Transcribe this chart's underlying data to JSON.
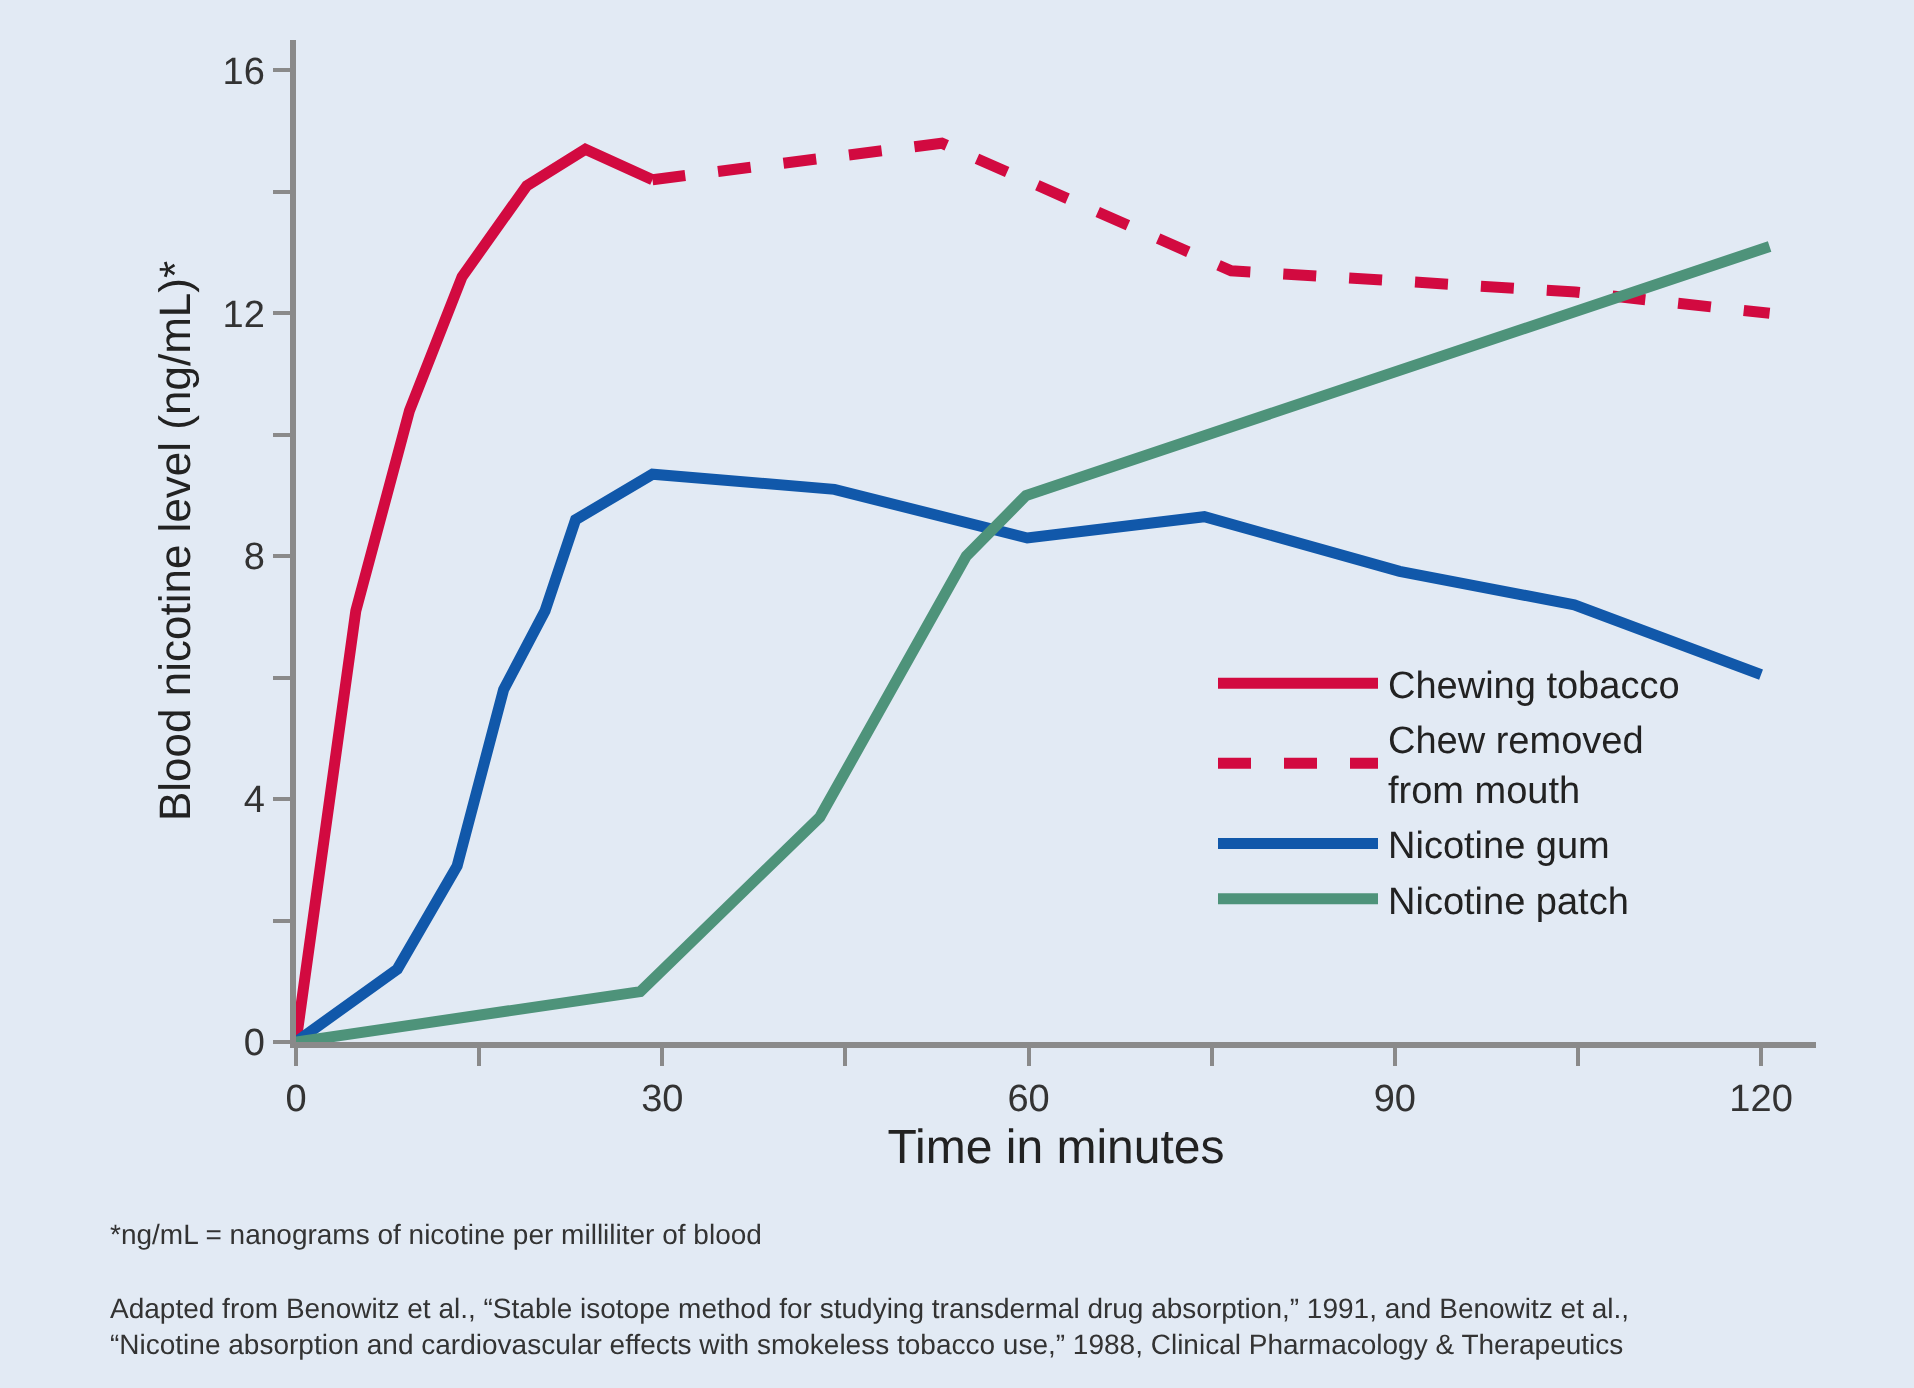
{
  "chart_data": {
    "type": "line",
    "xlabel": "Time in minutes",
    "ylabel": "Blood nicotine level (ng/mL)*",
    "xlim": [
      0,
      124.5
    ],
    "ylim": [
      0,
      16.5
    ],
    "xticks": [
      0,
      {
        "value": 15,
        "label": null
      },
      30,
      {
        "value": 45,
        "label": null
      },
      60,
      {
        "value": 75,
        "label": null
      },
      90,
      {
        "value": 105,
        "label": null
      },
      120
    ],
    "yticks": [
      0,
      {
        "value": 2,
        "label": null
      },
      4,
      {
        "value": 6,
        "label": null
      },
      8,
      {
        "value": 10,
        "label": null
      },
      12,
      {
        "value": 14,
        "label": null
      },
      16
    ],
    "grid": false,
    "legend": "bottom right",
    "marker": "none",
    "series": [
      {
        "name": "Chewing tobacco",
        "color": "#d20a40",
        "line_style": "solid",
        "x": [
          0,
          4.9,
          9.3,
          13.6,
          18.9,
          23.7,
          29.2
        ],
        "values": [
          0,
          7.1,
          10.4,
          12.6,
          14.1,
          14.7,
          14.2
        ]
      },
      {
        "name": "Chew removed\nfrom mouth",
        "color": "#d20a40",
        "line_style": "dashed",
        "x": [
          29.2,
          52.9,
          76.6,
          104.8,
          120.7
        ],
        "values": [
          14.2,
          14.8,
          12.7,
          12.35,
          12.0
        ]
      },
      {
        "name": "Nicotine gum",
        "color": "#1158aa",
        "line_style": "solid",
        "x": [
          0,
          8.3,
          13.2,
          17,
          20.4,
          22.9,
          29.2,
          44.1,
          59.9,
          74.4,
          90.4,
          104.7,
          120
        ],
        "values": [
          0,
          1.2,
          2.9,
          5.8,
          7.1,
          8.6,
          9.35,
          9.1,
          8.3,
          8.65,
          7.75,
          7.2,
          6.05
        ]
      },
      {
        "name": "Nicotine patch",
        "color": "#4e937a",
        "line_style": "solid",
        "x": [
          0,
          28.2,
          42.9,
          54.9,
          59.8,
          120.7
        ],
        "values": [
          0,
          0.83,
          3.7,
          8.0,
          9.0,
          13.1
        ]
      }
    ],
    "annotations": [
      "*ng/mL = nanograms of nicotine per milliliter of blood",
      "Adapted from Benowitz et al., “Stable isotope method for studying transdermal drug absorption,” 1991, and Benowitz et al.,\n“Nicotine absorption and cardiovascular effects with smokeless tobacco use,” 1988, Clinical Pharmacology & Therapeutics"
    ]
  }
}
